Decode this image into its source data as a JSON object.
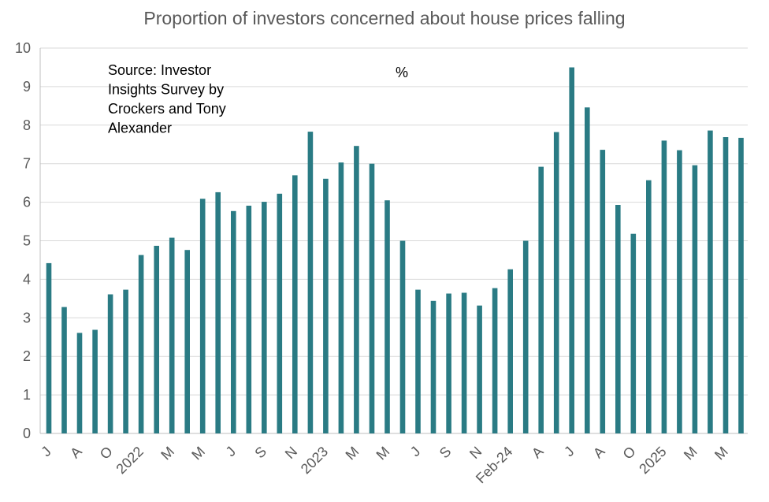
{
  "chart_data": {
    "type": "bar",
    "title": "Proportion of investors concerned about house prices falling",
    "unit_label": "%",
    "source_note": [
      "Source: Investor",
      "Insights Survey by",
      "Crockers and Tony",
      "Alexander"
    ],
    "ylim": [
      0,
      10
    ],
    "yticks": [
      0,
      1,
      2,
      3,
      4,
      5,
      6,
      7,
      8,
      9,
      10
    ],
    "grid": true,
    "bar_color": "#2A7B84",
    "values": [
      4.42,
      3.28,
      2.61,
      2.69,
      3.61,
      3.73,
      4.63,
      4.87,
      5.08,
      4.76,
      6.09,
      6.26,
      5.77,
      5.91,
      6.01,
      6.22,
      6.7,
      7.83,
      6.61,
      7.03,
      7.46,
      7.0,
      6.05,
      5.0,
      3.73,
      3.44,
      3.63,
      3.65,
      3.32,
      3.77,
      4.26,
      5.0,
      6.92,
      7.82,
      9.5,
      8.46,
      7.36,
      5.93,
      5.18,
      6.57,
      7.6,
      7.35,
      6.96,
      7.86,
      7.69,
      7.67
    ],
    "x_tick_labels": [
      {
        "index": 0,
        "label": "J"
      },
      {
        "index": 2,
        "label": "A"
      },
      {
        "index": 4,
        "label": "O"
      },
      {
        "index": 6,
        "label": "2022"
      },
      {
        "index": 8,
        "label": "M"
      },
      {
        "index": 10,
        "label": "M"
      },
      {
        "index": 12,
        "label": "J"
      },
      {
        "index": 14,
        "label": "S"
      },
      {
        "index": 16,
        "label": "N"
      },
      {
        "index": 18,
        "label": "2023"
      },
      {
        "index": 20,
        "label": "M"
      },
      {
        "index": 22,
        "label": "M"
      },
      {
        "index": 24,
        "label": "J"
      },
      {
        "index": 26,
        "label": "S"
      },
      {
        "index": 28,
        "label": "N"
      },
      {
        "index": 30,
        "label": "Feb-24"
      },
      {
        "index": 32,
        "label": "A"
      },
      {
        "index": 34,
        "label": "J"
      },
      {
        "index": 36,
        "label": "A"
      },
      {
        "index": 38,
        "label": "O"
      },
      {
        "index": 40,
        "label": "2025"
      },
      {
        "index": 42,
        "label": "M"
      },
      {
        "index": 44,
        "label": "M"
      }
    ]
  }
}
